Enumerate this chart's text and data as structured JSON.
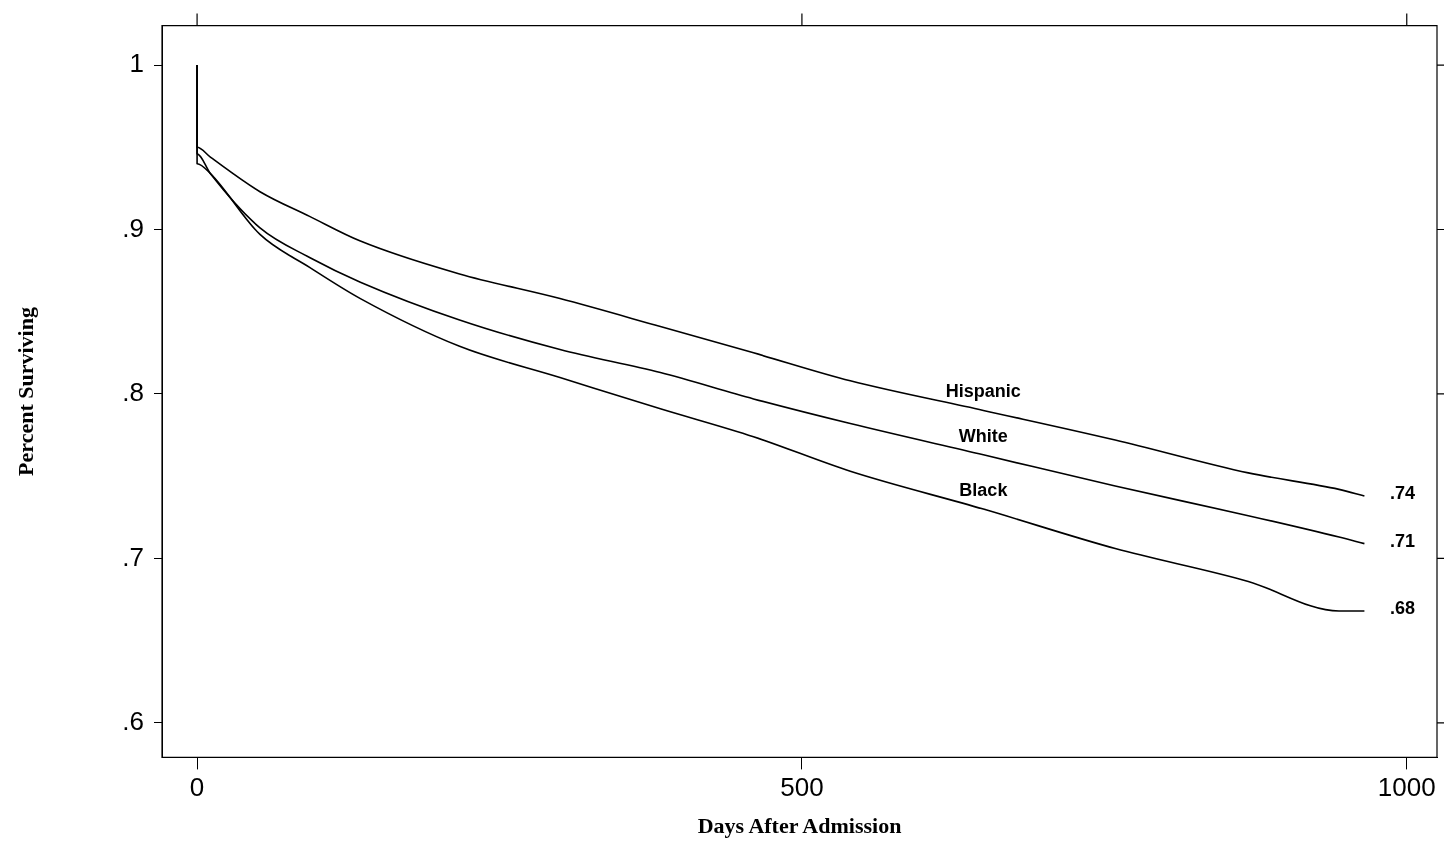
{
  "chart_data": {
    "type": "line",
    "xlabel": "Days After Admission",
    "ylabel": "Percent Surviving",
    "xlim": [
      -29,
      1025
    ],
    "ylim": [
      0.579,
      1.024
    ],
    "xticks": [
      0,
      500,
      1000
    ],
    "yticks": [
      {
        "value": 0.6,
        "label": ".6"
      },
      {
        "value": 0.7,
        "label": ".7"
      },
      {
        "value": 0.8,
        "label": ".8"
      },
      {
        "value": 0.9,
        "label": ".9"
      },
      1
    ],
    "grid": false,
    "legend": false,
    "marker": "none",
    "line_style": "solid",
    "series": [
      {
        "name": "Hispanic",
        "color": "#000000",
        "x": [
          0,
          0,
          11,
          52,
          93,
          135,
          217,
          300,
          383,
          460,
          540,
          650,
          759,
          869,
          944,
          965
        ],
        "values": [
          1,
          0.95,
          0.944,
          0.923,
          0.908,
          0.893,
          0.873,
          0.858,
          0.841,
          0.825,
          0.808,
          0.79,
          0.772,
          0.752,
          0.742,
          0.738
        ]
      },
      {
        "name": "White",
        "color": "#000000",
        "x": [
          0,
          0,
          11,
          52,
          93,
          135,
          217,
          300,
          383,
          460,
          540,
          650,
          759,
          869,
          944,
          965
        ],
        "values": [
          1,
          0.946,
          0.934,
          0.901,
          0.883,
          0.868,
          0.845,
          0.827,
          0.813,
          0.797,
          0.782,
          0.763,
          0.744,
          0.726,
          0.713,
          0.709
        ]
      },
      {
        "name": "Black",
        "color": "#000000",
        "x": [
          0,
          0,
          11,
          52,
          93,
          135,
          217,
          300,
          383,
          460,
          540,
          650,
          759,
          869,
          944,
          965
        ],
        "values": [
          1,
          0.94,
          0.934,
          0.897,
          0.877,
          0.858,
          0.829,
          0.81,
          0.791,
          0.774,
          0.753,
          0.73,
          0.706,
          0.686,
          0.668,
          0.668
        ]
      }
    ],
    "annotations": [
      ".74",
      ".71",
      ".68"
    ]
  }
}
